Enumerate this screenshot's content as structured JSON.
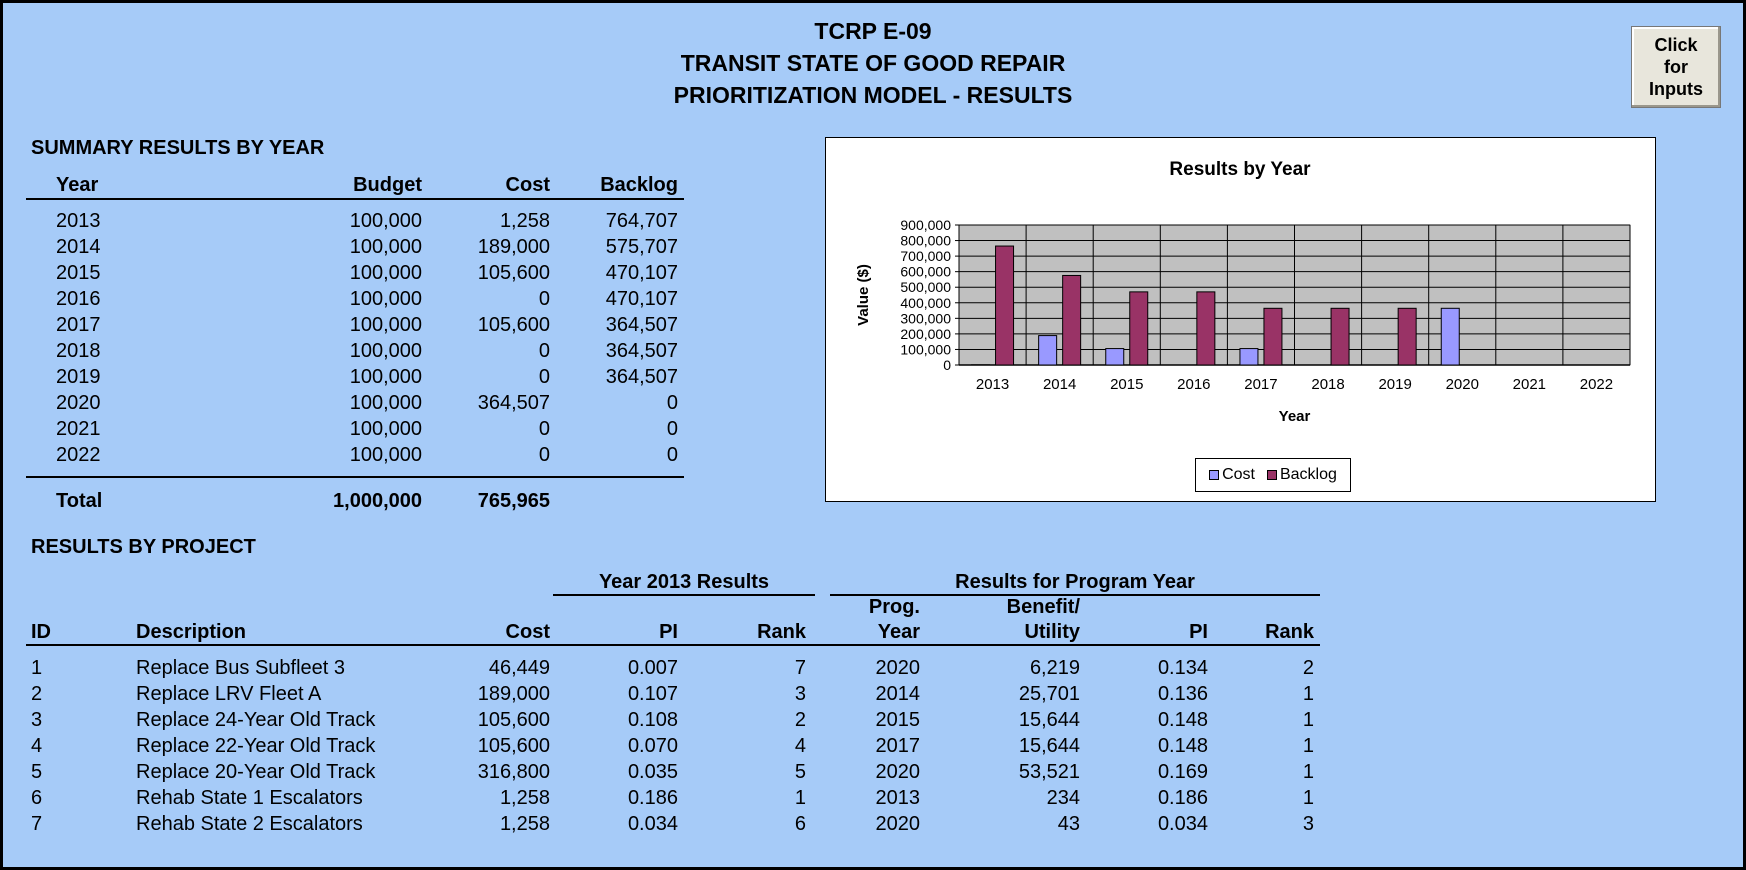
{
  "header": {
    "line1": "TCRP E-09",
    "line2": "TRANSIT STATE OF GOOD REPAIR",
    "line3": "PRIORITIZATION MODEL - RESULTS"
  },
  "inputs_button": {
    "line1": "Click",
    "line2": "for",
    "line3": "Inputs"
  },
  "summary": {
    "title": "SUMMARY RESULTS BY YEAR",
    "columns": {
      "year": "Year",
      "budget": "Budget",
      "cost": "Cost",
      "backlog": "Backlog"
    },
    "rows": [
      {
        "year": "2013",
        "budget": "100,000",
        "cost": "1,258",
        "backlog": "764,707"
      },
      {
        "year": "2014",
        "budget": "100,000",
        "cost": "189,000",
        "backlog": "575,707"
      },
      {
        "year": "2015",
        "budget": "100,000",
        "cost": "105,600",
        "backlog": "470,107"
      },
      {
        "year": "2016",
        "budget": "100,000",
        "cost": "0",
        "backlog": "470,107"
      },
      {
        "year": "2017",
        "budget": "100,000",
        "cost": "105,600",
        "backlog": "364,507"
      },
      {
        "year": "2018",
        "budget": "100,000",
        "cost": "0",
        "backlog": "364,507"
      },
      {
        "year": "2019",
        "budget": "100,000",
        "cost": "0",
        "backlog": "364,507"
      },
      {
        "year": "2020",
        "budget": "100,000",
        "cost": "364,507",
        "backlog": "0"
      },
      {
        "year": "2021",
        "budget": "100,000",
        "cost": "0",
        "backlog": "0"
      },
      {
        "year": "2022",
        "budget": "100,000",
        "cost": "0",
        "backlog": "0"
      }
    ],
    "total": {
      "label": "Total",
      "budget": "1,000,000",
      "cost": "765,965"
    }
  },
  "projects": {
    "title": "RESULTS BY PROJECT",
    "group_2013": "Year 2013 Results",
    "group_program": "Results for Program Year",
    "columns": {
      "id": "ID",
      "description": "Description",
      "cost": "Cost",
      "pi": "PI",
      "rank": "Rank",
      "prog_year_1": "Prog.",
      "prog_year_2": "Year",
      "benefit_1": "Benefit/",
      "benefit_2": "Utility",
      "pi2": "PI",
      "rank2": "Rank"
    },
    "rows": [
      {
        "id": "1",
        "description": "Replace Bus Subfleet 3",
        "cost": "46,449",
        "pi": "0.007",
        "rank": "7",
        "prog_year": "2020",
        "benefit": "6,219",
        "pi2": "0.134",
        "rank2": "2"
      },
      {
        "id": "2",
        "description": "Replace LRV Fleet A",
        "cost": "189,000",
        "pi": "0.107",
        "rank": "3",
        "prog_year": "2014",
        "benefit": "25,701",
        "pi2": "0.136",
        "rank2": "1"
      },
      {
        "id": "3",
        "description": "Replace 24-Year Old Track",
        "cost": "105,600",
        "pi": "0.108",
        "rank": "2",
        "prog_year": "2015",
        "benefit": "15,644",
        "pi2": "0.148",
        "rank2": "1"
      },
      {
        "id": "4",
        "description": "Replace 22-Year Old Track",
        "cost": "105,600",
        "pi": "0.070",
        "rank": "4",
        "prog_year": "2017",
        "benefit": "15,644",
        "pi2": "0.148",
        "rank2": "1"
      },
      {
        "id": "5",
        "description": "Replace 20-Year Old Track",
        "cost": "316,800",
        "pi": "0.035",
        "rank": "5",
        "prog_year": "2020",
        "benefit": "53,521",
        "pi2": "0.169",
        "rank2": "1"
      },
      {
        "id": "6",
        "description": "Rehab State 1 Escalators",
        "cost": "1,258",
        "pi": "0.186",
        "rank": "1",
        "prog_year": "2013",
        "benefit": "234",
        "pi2": "0.186",
        "rank2": "1"
      },
      {
        "id": "7",
        "description": "Rehab State 2 Escalators",
        "cost": "1,258",
        "pi": "0.034",
        "rank": "6",
        "prog_year": "2020",
        "benefit": "43",
        "pi2": "0.034",
        "rank2": "3"
      }
    ]
  },
  "chart_data": {
    "type": "bar",
    "title": "Results by Year",
    "xlabel": "Year",
    "ylabel": "Value ($)",
    "ylim": [
      0,
      900000
    ],
    "yticks": [
      "0",
      "100,000",
      "200,000",
      "300,000",
      "400,000",
      "500,000",
      "600,000",
      "700,000",
      "800,000",
      "900,000"
    ],
    "categories": [
      "2013",
      "2014",
      "2015",
      "2016",
      "2017",
      "2018",
      "2019",
      "2020",
      "2021",
      "2022"
    ],
    "series": [
      {
        "name": "Cost",
        "color": "#9999ff",
        "values": [
          1258,
          189000,
          105600,
          0,
          105600,
          0,
          0,
          364507,
          0,
          0
        ]
      },
      {
        "name": "Backlog",
        "color": "#993366",
        "values": [
          764707,
          575707,
          470107,
          470107,
          364507,
          364507,
          364507,
          0,
          0,
          0
        ]
      }
    ],
    "plot_background": "#c0c0c0",
    "grid": true,
    "legend": "bottom"
  }
}
